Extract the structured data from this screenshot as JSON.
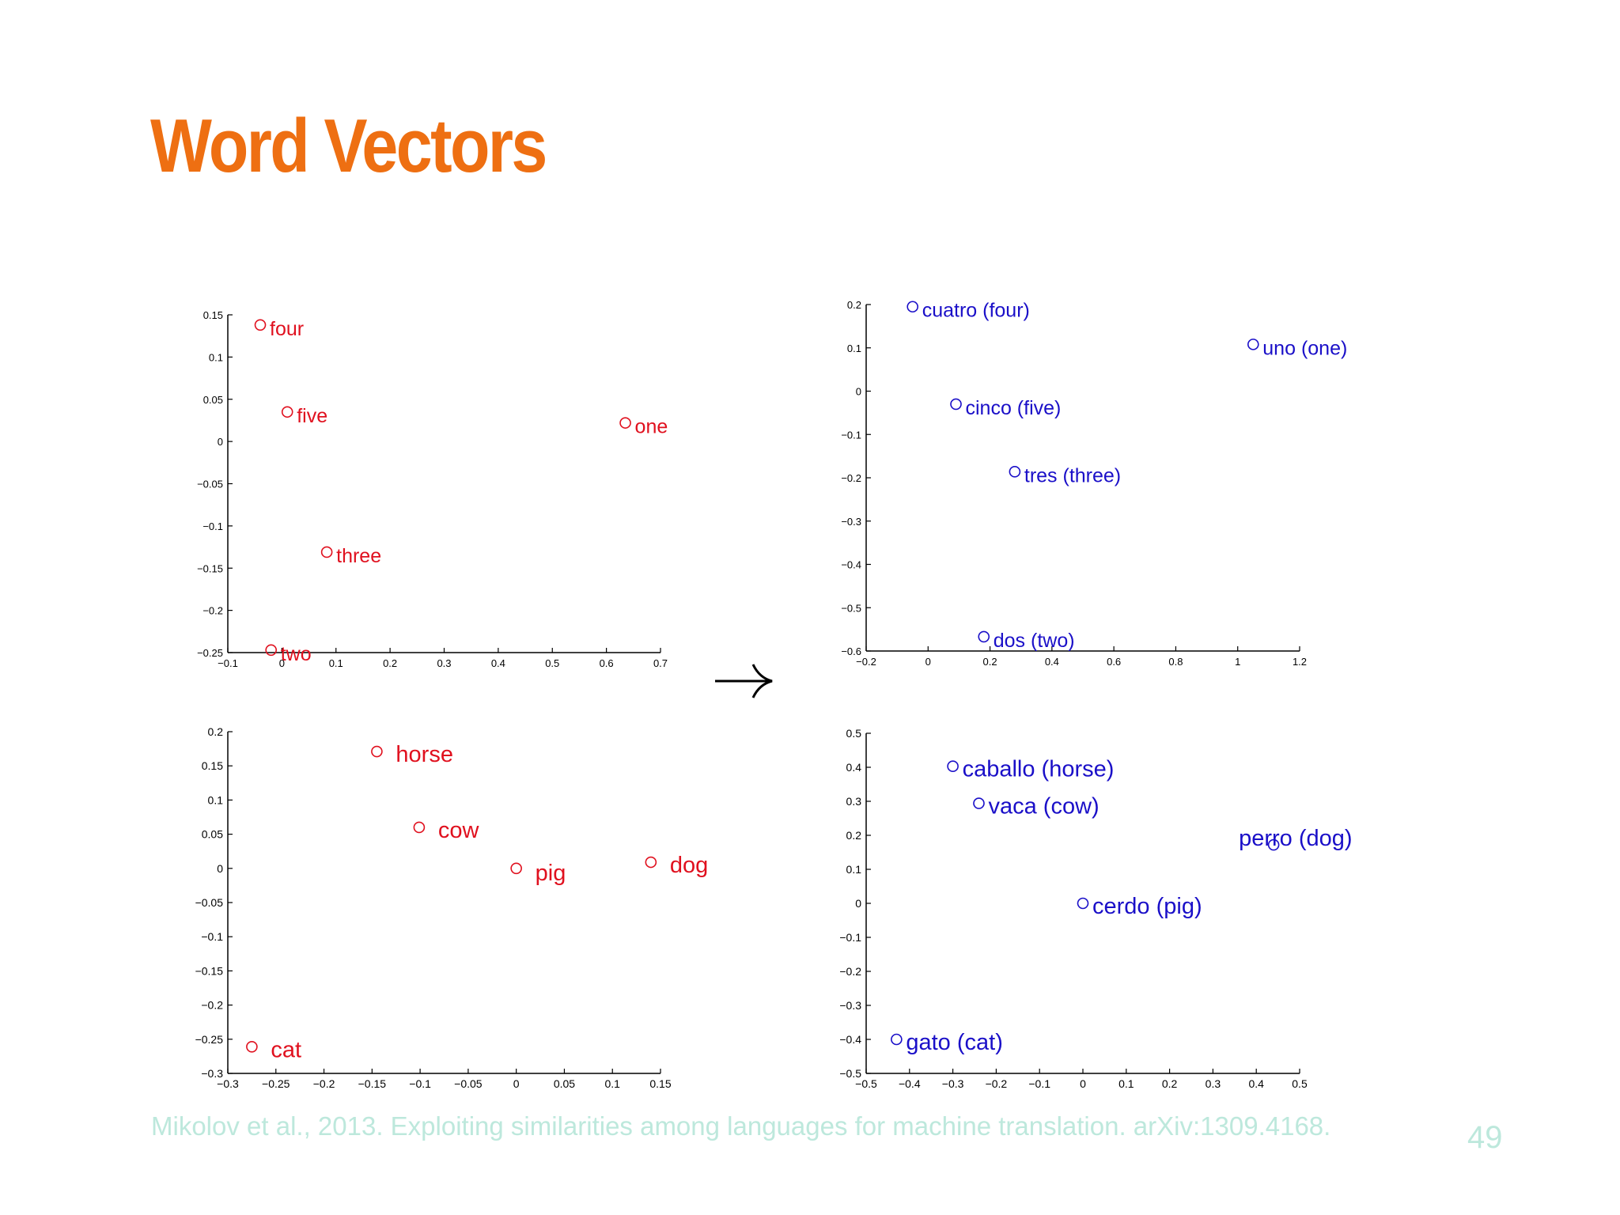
{
  "slide": {
    "title": "Word Vectors",
    "citation": "Mikolov et al., 2013. Exploiting similarities among languages for machine translation. arXiv:1309.4168.",
    "page_number": "49"
  },
  "colors": {
    "title": "#ee6f12",
    "english_points": "#e0101e",
    "spanish_points": "#1a0fc8",
    "footer": "#bde8dc",
    "axis": "#000000"
  },
  "chart_data": [
    {
      "id": "numbers-english",
      "type": "scatter",
      "xlim": [
        -0.1,
        0.7
      ],
      "ylim": [
        -0.25,
        0.15
      ],
      "xticks": [
        -0.1,
        0,
        0.1,
        0.2,
        0.3,
        0.4,
        0.5,
        0.6,
        0.7
      ],
      "yticks": [
        -0.25,
        -0.2,
        -0.15,
        -0.1,
        -0.05,
        0,
        0.05,
        0.1,
        0.15
      ],
      "grid": false,
      "points": [
        {
          "label": "four",
          "x": -0.04,
          "y": 0.138
        },
        {
          "label": "five",
          "x": 0.01,
          "y": 0.035
        },
        {
          "label": "one",
          "x": 0.635,
          "y": 0.022
        },
        {
          "label": "three",
          "x": 0.083,
          "y": -0.131
        },
        {
          "label": "two",
          "x": -0.02,
          "y": -0.247
        }
      ]
    },
    {
      "id": "numbers-spanish",
      "type": "scatter",
      "xlim": [
        -0.2,
        1.2
      ],
      "ylim": [
        -0.6,
        0.2
      ],
      "xticks": [
        -0.2,
        0,
        0.2,
        0.4,
        0.6,
        0.8,
        1,
        1.2
      ],
      "yticks": [
        -0.6,
        -0.5,
        -0.4,
        -0.3,
        -0.2,
        -0.1,
        0,
        0.1,
        0.2
      ],
      "grid": false,
      "points": [
        {
          "label": "cuatro (four)",
          "x": -0.05,
          "y": 0.195
        },
        {
          "label": "uno (one)",
          "x": 1.05,
          "y": 0.108
        },
        {
          "label": "cinco (five)",
          "x": 0.09,
          "y": -0.03
        },
        {
          "label": "tres (three)",
          "x": 0.28,
          "y": -0.186
        },
        {
          "label": "dos (two)",
          "x": 0.18,
          "y": -0.567
        }
      ]
    },
    {
      "id": "animals-english",
      "type": "scatter",
      "xlim": [
        -0.3,
        0.15
      ],
      "ylim": [
        -0.3,
        0.2
      ],
      "xticks": [
        -0.3,
        -0.25,
        -0.2,
        -0.15,
        -0.1,
        -0.05,
        0,
        0.05,
        0.1,
        0.15
      ],
      "yticks": [
        -0.3,
        -0.25,
        -0.2,
        -0.15,
        -0.1,
        -0.05,
        0,
        0.05,
        0.1,
        0.15,
        0.2
      ],
      "grid": false,
      "points": [
        {
          "label": "horse",
          "x": -0.145,
          "y": 0.171
        },
        {
          "label": "cow",
          "x": -0.101,
          "y": 0.06
        },
        {
          "label": "pig",
          "x": 0.0,
          "y": 0.0
        },
        {
          "label": "dog",
          "x": 0.14,
          "y": 0.009
        },
        {
          "label": "cat",
          "x": -0.275,
          "y": -0.261
        }
      ]
    },
    {
      "id": "animals-spanish",
      "type": "scatter",
      "xlim": [
        -0.5,
        0.5
      ],
      "ylim": [
        -0.5,
        0.5
      ],
      "xticks": [
        -0.5,
        -0.4,
        -0.3,
        -0.2,
        -0.1,
        0,
        0.1,
        0.2,
        0.3,
        0.4,
        0.5
      ],
      "yticks": [
        -0.5,
        -0.4,
        -0.3,
        -0.2,
        -0.1,
        0,
        0.1,
        0.2,
        0.3,
        0.4,
        0.5
      ],
      "grid": false,
      "points": [
        {
          "label": "caballo (horse)",
          "x": -0.3,
          "y": 0.403
        },
        {
          "label": "vaca (cow)",
          "x": -0.24,
          "y": 0.294
        },
        {
          "label": "perro (dog)",
          "x": 0.44,
          "y": 0.172
        },
        {
          "label": "cerdo (pig)",
          "x": 0.0,
          "y": 0.0
        },
        {
          "label": "gato (cat)",
          "x": -0.43,
          "y": -0.4
        }
      ]
    }
  ]
}
